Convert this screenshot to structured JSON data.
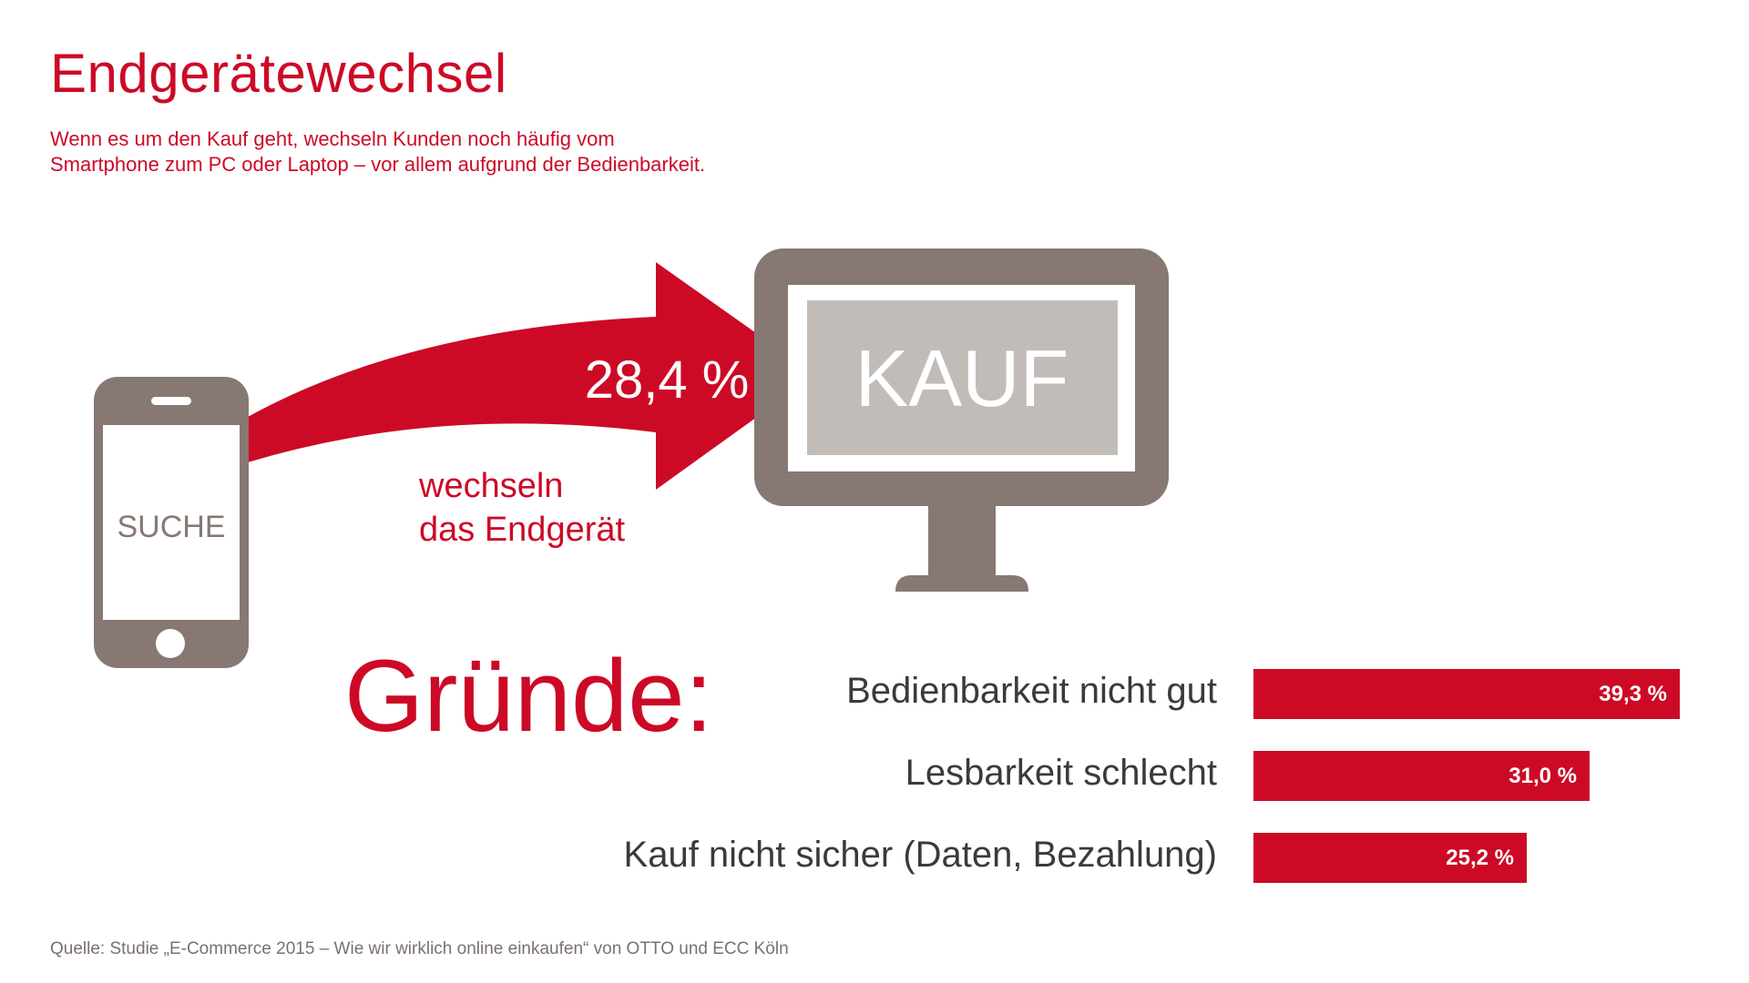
{
  "title": "Endgerätewechsel",
  "subtitle_lines": [
    "Wenn es um den Kauf geht, wechseln Kunden noch häufig vom",
    "Smartphone zum PC oder Laptop – vor allem aufgrund der Bedienbarkeit."
  ],
  "phone_screen_label": "SUCHE",
  "monitor_screen_label": "KAUF",
  "switch_value": "28,4 %",
  "switch_caption": [
    "wechseln",
    "das Endgerät"
  ],
  "reasons_heading": "Gründe:",
  "colors": {
    "accent": "#cc0a26",
    "device_gray": "#877873",
    "screen_light": "#c2bcb8",
    "text_dark": "#3a3a3a"
  },
  "chart_data": {
    "type": "bar",
    "orientation": "horizontal",
    "categories": [
      "Bedienbarkeit nicht gut",
      "Lesbarkeit schlecht",
      "Kauf nicht sicher (Daten, Bezahlung)"
    ],
    "values": [
      39.3,
      31.0,
      25.2
    ],
    "value_labels": [
      "39,3 %",
      "31,0 %",
      "25,2 %"
    ],
    "unit": "%"
  },
  "source": "Quelle: Studie „E-Commerce 2015 – Wie wir wirklich online einkaufen“ von OTTO und ECC Köln"
}
